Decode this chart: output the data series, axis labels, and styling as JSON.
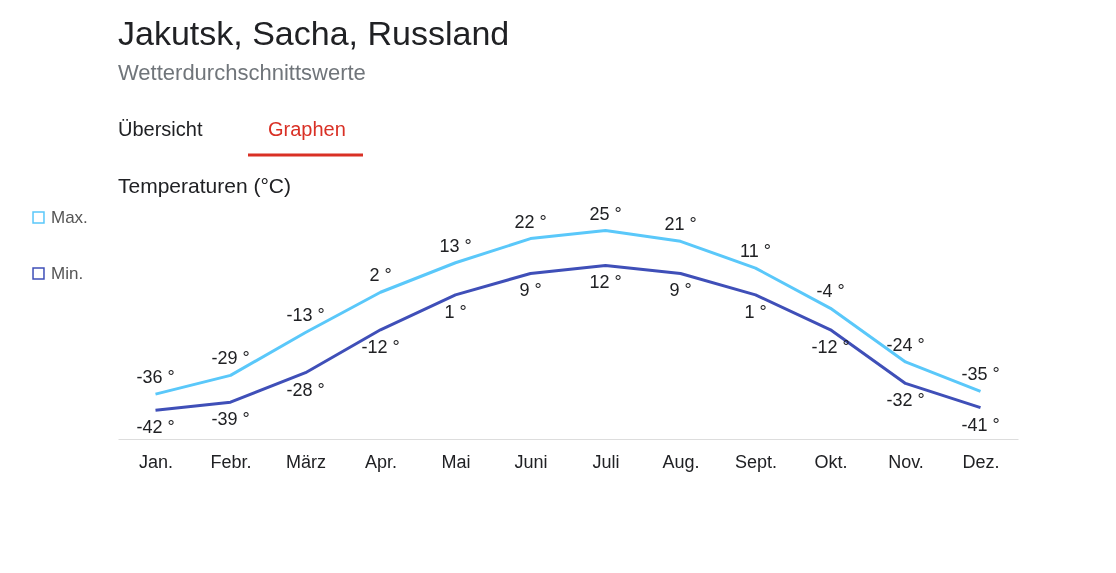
{
  "chart_data": {
    "type": "line",
    "title": "Jakutsk, Sacha, Russland",
    "subtitle": "Wetterdurchschnittswerte",
    "ylabel": "Temperaturen (°C)",
    "annotations": [
      "Übersicht",
      "Graphen"
    ],
    "categories": [
      "Jan.",
      "Febr.",
      "März",
      "Apr.",
      "Mai",
      "Juni",
      "Juli",
      "Aug.",
      "Sept.",
      "Okt.",
      "Nov.",
      "Dez."
    ],
    "series": [
      {
        "name": "Max.",
        "color": "#5ac8fa",
        "values": [
          -36,
          -29,
          -13,
          2,
          13,
          22,
          25,
          21,
          11,
          -4,
          -24,
          -35
        ],
        "value_labels": [
          "-36 °",
          "-29 °",
          "-13 °",
          "2 °",
          "13 °",
          "22 °",
          "25 °",
          "21 °",
          "11 °",
          "-4 °",
          "-24 °",
          "-35 °"
        ]
      },
      {
        "name": "Min.",
        "color": "#3f4fb8",
        "values": [
          -42,
          -39,
          -28,
          -12,
          1,
          9,
          12,
          9,
          1,
          -12,
          -32,
          -41
        ],
        "value_labels": [
          "-42 °",
          "-39 °",
          "-28 °",
          "-12 °",
          "1 °",
          "9 °",
          "12 °",
          "9 °",
          "1 °",
          "-12 °",
          "-32 °",
          "-41 °"
        ]
      }
    ],
    "legend": "left",
    "grid": false
  }
}
